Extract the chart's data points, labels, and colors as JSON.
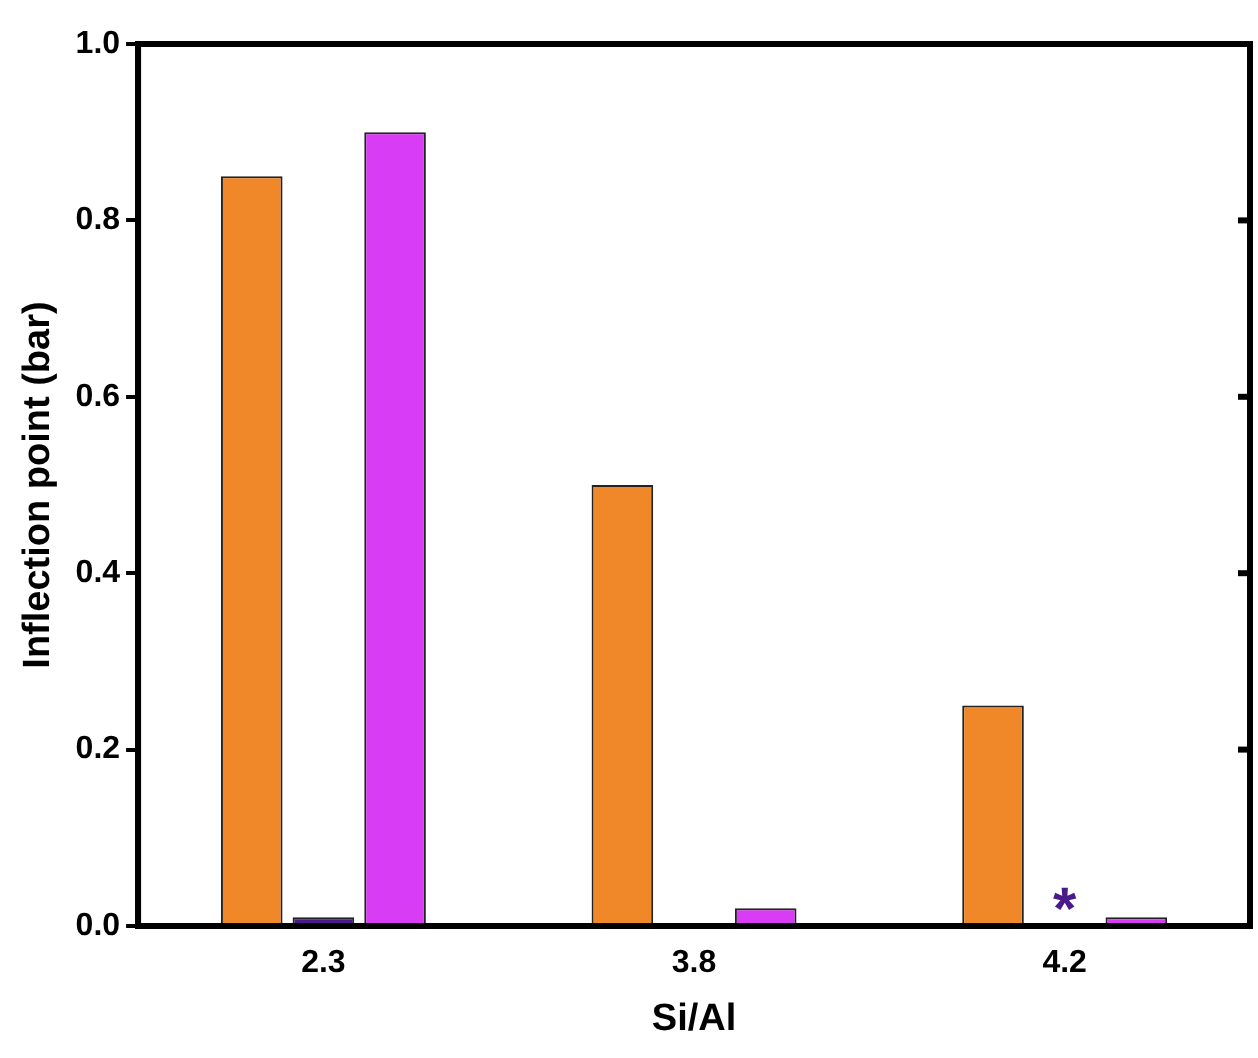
{
  "chart_data": {
    "type": "bar",
    "xlabel": "Si/Al",
    "ylabel": "Inflection point (bar)",
    "categories": [
      "2.3",
      "3.8",
      "4.2"
    ],
    "series": [
      {
        "color": "#f0882a",
        "values": [
          0.85,
          0.5,
          0.25
        ]
      },
      {
        "color": "#4b1a8a",
        "values": [
          0.01,
          0,
          null
        ]
      },
      {
        "color": "#d83cf5",
        "values": [
          0.9,
          0.02,
          0.01
        ]
      }
    ],
    "ylim": [
      0,
      1
    ],
    "yticks": [
      {
        "value": 0,
        "label": "0.0"
      },
      {
        "value": 0.2,
        "label": "0.2"
      },
      {
        "value": 0.4,
        "label": "0.4"
      },
      {
        "value": 0.6,
        "label": "0.6"
      },
      {
        "value": 0.8,
        "label": "0.8"
      },
      {
        "value": 1,
        "label": "1.0"
      }
    ],
    "annotations": [
      "*"
    ],
    "grid": false,
    "legend": false
  }
}
